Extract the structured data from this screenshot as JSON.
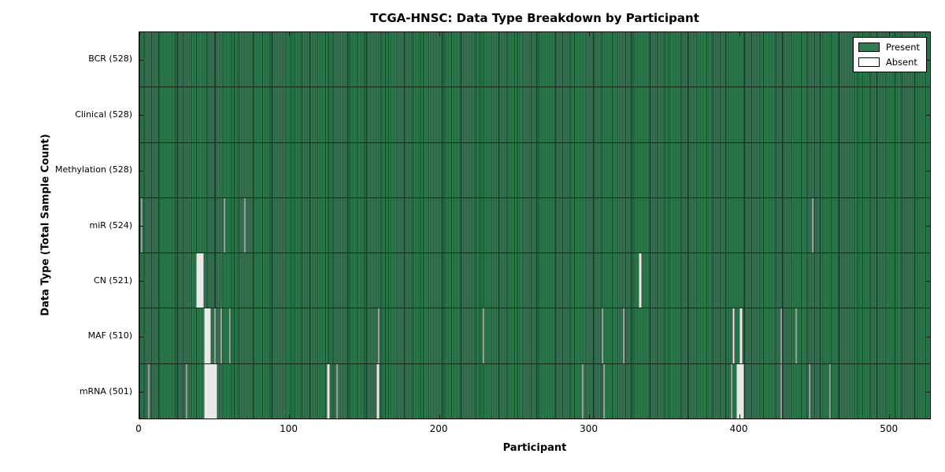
{
  "chart_data": {
    "type": "heatmap",
    "title": "TCGA-HNSC: Data Type Breakdown by Participant",
    "xlabel": "Participant",
    "ylabel": "Data Type (Total Sample Count)",
    "xlim": [
      0,
      528
    ],
    "x_ticks": [
      0,
      100,
      200,
      300,
      400,
      500
    ],
    "grid": false,
    "legend_position": "upper right",
    "legend": [
      {
        "label": "Present",
        "color": "#2f7e52"
      },
      {
        "label": "Absent",
        "color": "#ffffff"
      }
    ],
    "colors": {
      "present": "#2f7e52",
      "absent": "#ffffff",
      "edge": "#000000"
    },
    "n_participants": 528,
    "rows": [
      {
        "key": "bcr",
        "label": "BCR (528)",
        "data_type": "BCR",
        "present_count": 528,
        "absent_runs": []
      },
      {
        "key": "clinical",
        "label": "Clinical (528)",
        "data_type": "Clinical",
        "present_count": 528,
        "absent_runs": []
      },
      {
        "key": "methylation",
        "label": "Methylation (528)",
        "data_type": "Methylation",
        "present_count": 528,
        "absent_runs": []
      },
      {
        "key": "mir",
        "label": "miR (524)",
        "data_type": "miR",
        "present_count": 524,
        "absent_runs": [
          [
            1,
            1
          ],
          [
            56,
            1
          ],
          [
            70,
            1
          ],
          [
            448,
            1
          ]
        ]
      },
      {
        "key": "cn",
        "label": "CN (521)",
        "data_type": "CN",
        "present_count": 521,
        "absent_runs": [
          [
            38,
            5
          ],
          [
            333,
            2
          ]
        ]
      },
      {
        "key": "maf",
        "label": "MAF (510)",
        "data_type": "MAF",
        "present_count": 510,
        "absent_runs": [
          [
            43,
            5
          ],
          [
            50,
            1
          ],
          [
            54,
            1
          ],
          [
            60,
            1
          ],
          [
            159,
            1
          ],
          [
            229,
            1
          ],
          [
            308,
            1
          ],
          [
            322,
            1
          ],
          [
            395,
            2
          ],
          [
            400,
            2
          ],
          [
            427,
            1
          ],
          [
            437,
            1
          ]
        ]
      },
      {
        "key": "mrna",
        "label": "mRNA (501)",
        "data_type": "mRNA",
        "present_count": 501,
        "absent_runs": [
          [
            6,
            1
          ],
          [
            31,
            1
          ],
          [
            43,
            9
          ],
          [
            125,
            2
          ],
          [
            131,
            1
          ],
          [
            158,
            2
          ],
          [
            295,
            1
          ],
          [
            309,
            1
          ],
          [
            394,
            1
          ],
          [
            398,
            5
          ],
          [
            427,
            1
          ],
          [
            446,
            1
          ],
          [
            460,
            1
          ]
        ]
      }
    ]
  }
}
